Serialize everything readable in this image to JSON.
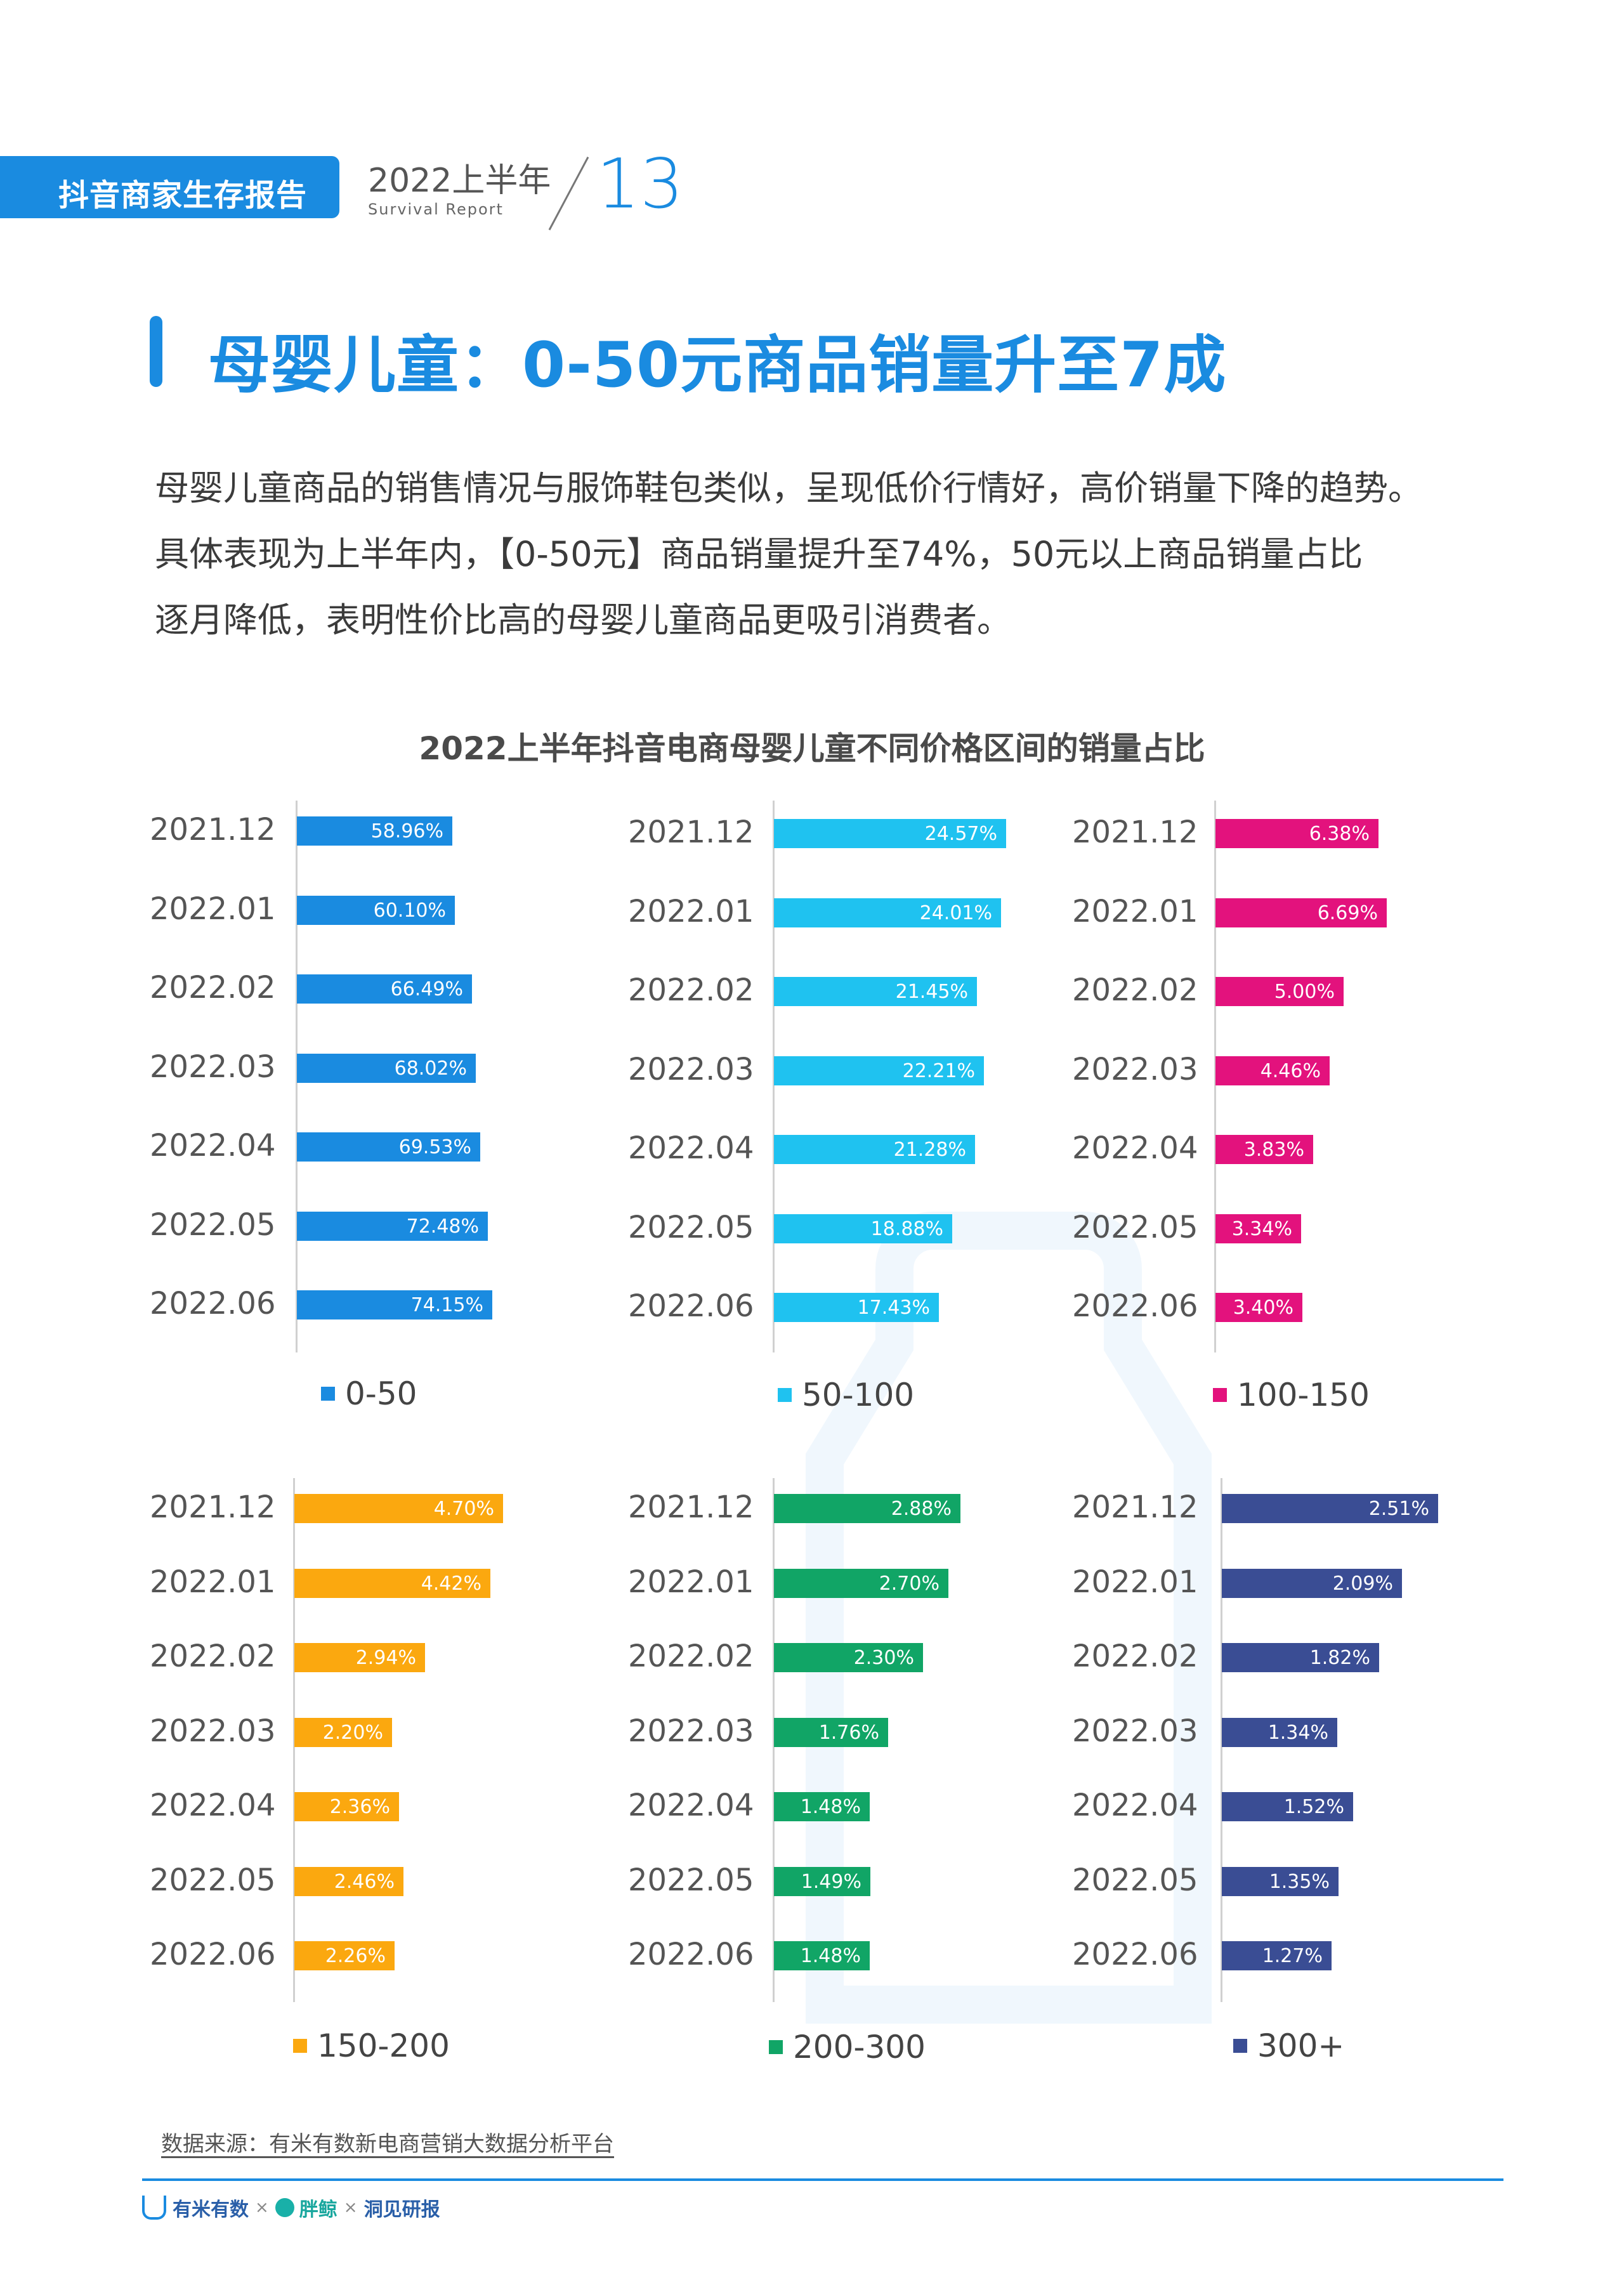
{
  "header": {
    "report_name": "抖音商家生存报告",
    "period": "2022上半年",
    "subtitle": "Survival Report",
    "page_number": "13"
  },
  "title": "母婴儿童：0-50元商品销量升至7成",
  "body": [
    "母婴儿童商品的销售情况与服饰鞋包类似，呈现低价行情好，高价销量下降的趋势。",
    "具体表现为上半年内，【0-50元】商品销量提升至74%，50元以上商品销量占比",
    "逐月降低，表明性价比高的母婴儿童商品更吸引消费者。"
  ],
  "chart_data": {
    "type": "bar",
    "orientation": "horizontal",
    "title": "2022上半年抖音电商母婴儿童不同价格区间的销量占比",
    "unit": "%",
    "categories": [
      "2021.12",
      "2022.01",
      "2022.02",
      "2022.03",
      "2022.04",
      "2022.05",
      "2022.06"
    ],
    "series": [
      {
        "name": "0-50",
        "color": "#1a8be0",
        "values": [
          58.96,
          60.1,
          66.49,
          68.02,
          69.53,
          72.48,
          74.15
        ],
        "labels": [
          "58.96%",
          "60.10%",
          "66.49%",
          "68.02%",
          "69.53%",
          "72.48%",
          "74.15%"
        ]
      },
      {
        "name": "50-100",
        "color": "#1fc2f0",
        "values": [
          24.57,
          24.01,
          21.45,
          22.21,
          21.28,
          18.88,
          17.43
        ],
        "labels": [
          "24.57%",
          "24.01%",
          "21.45%",
          "22.21%",
          "21.28%",
          "18.88%",
          "17.43%"
        ]
      },
      {
        "name": "100-150",
        "color": "#e3127d",
        "values": [
          6.38,
          6.69,
          5.0,
          4.46,
          3.83,
          3.34,
          3.4
        ],
        "labels": [
          "6.38%",
          "6.69%",
          "5.00%",
          "4.46%",
          "3.83%",
          "3.34%",
          "3.40%"
        ]
      },
      {
        "name": "150-200",
        "color": "#fba80f",
        "values": [
          4.7,
          4.42,
          2.94,
          2.2,
          2.36,
          2.46,
          2.26
        ],
        "labels": [
          "4.70%",
          "4.42%",
          "2.94%",
          "2.20%",
          "2.36%",
          "2.46%",
          "2.26%"
        ]
      },
      {
        "name": "200-300",
        "color": "#11a566",
        "values": [
          2.88,
          2.7,
          2.3,
          1.76,
          1.48,
          1.49,
          1.48
        ],
        "labels": [
          "2.88%",
          "2.70%",
          "2.30%",
          "1.76%",
          "1.48%",
          "1.49%",
          "1.48%"
        ]
      },
      {
        "name": "300+",
        "color": "#3a4d94",
        "values": [
          2.51,
          2.09,
          1.82,
          1.34,
          1.52,
          1.35,
          1.27
        ],
        "labels": [
          "2.51%",
          "2.09%",
          "1.82%",
          "1.34%",
          "1.52%",
          "1.35%",
          "1.27%"
        ]
      }
    ]
  },
  "footer": {
    "source": "数据来源：有米有数新电商营销大数据分析平台",
    "logo_1": "有米有数",
    "separator": "×",
    "logo_2": "胖鲸",
    "logo_3": "洞见研报"
  }
}
